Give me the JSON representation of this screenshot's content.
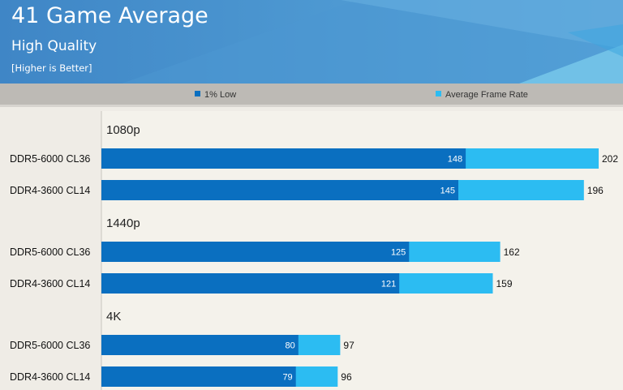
{
  "chart_data": {
    "type": "bar",
    "orientation": "horizontal",
    "title": "41 Game Average",
    "subtitle": "High Quality",
    "note": "[Higher is Better]",
    "legend_placement": "top",
    "groups": [
      {
        "label": "1080p",
        "rows": [
          {
            "label": "DDR5-6000 CL36",
            "low": 148,
            "avg": 202
          },
          {
            "label": "DDR4-3600 CL14",
            "low": 145,
            "avg": 196
          }
        ]
      },
      {
        "label": "1440p",
        "rows": [
          {
            "label": "DDR5-6000 CL36",
            "low": 125,
            "avg": 162
          },
          {
            "label": "DDR4-3600 CL14",
            "low": 121,
            "avg": 159
          }
        ]
      },
      {
        "label": "4K",
        "rows": [
          {
            "label": "DDR5-6000 CL36",
            "low": 80,
            "avg": 97
          },
          {
            "label": "DDR4-3600 CL14",
            "low": 79,
            "avg": 96
          }
        ]
      }
    ],
    "series": [
      {
        "name": "1% Low",
        "key": "low",
        "color": "#0a6fc0"
      },
      {
        "name": "Average Frame Rate",
        "key": "avg",
        "color": "#2cbcf2"
      }
    ],
    "xlim": [
      0,
      202
    ],
    "grid": false
  }
}
